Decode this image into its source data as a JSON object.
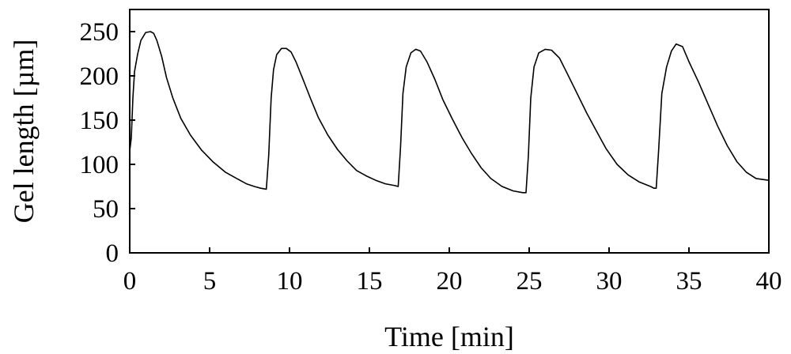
{
  "chart_data": {
    "type": "line",
    "xlabel": "Time [min]",
    "ylabel": "Gel length [µm]",
    "xlim": [
      0,
      40
    ],
    "ylim": [
      0,
      275
    ],
    "x_ticks": [
      0,
      5,
      10,
      15,
      20,
      25,
      30,
      35,
      40
    ],
    "y_ticks": [
      0,
      50,
      100,
      150,
      200,
      250
    ],
    "x_tick_labels": [
      "0",
      "5",
      "10",
      "15",
      "20",
      "25",
      "30",
      "35",
      "40"
    ],
    "y_tick_labels": [
      "0",
      "50",
      "100",
      "150",
      "200",
      "250"
    ],
    "grid": false,
    "line_color": "#000000",
    "series": [
      {
        "x": [
          0.0,
          0.1,
          0.2,
          0.3,
          0.5,
          0.7,
          1.0,
          1.3,
          1.5,
          1.7,
          2.0,
          2.3,
          2.7,
          3.2,
          3.8,
          4.5,
          5.2,
          6.0,
          6.7,
          7.3,
          7.8,
          8.2,
          8.55,
          8.7,
          8.85,
          9.0,
          9.2,
          9.5,
          9.8,
          10.1,
          10.4,
          10.8,
          11.3,
          11.8,
          12.4,
          13.0,
          13.6,
          14.2,
          14.8,
          15.4,
          16.0,
          16.6,
          16.8,
          16.95,
          17.1,
          17.3,
          17.6,
          17.9,
          18.2,
          18.6,
          19.1,
          19.6,
          20.2,
          20.8,
          21.4,
          22.0,
          22.6,
          23.3,
          24.0,
          24.6,
          24.8,
          24.95,
          25.1,
          25.3,
          25.6,
          26.0,
          26.4,
          26.9,
          27.4,
          28.0,
          28.6,
          29.2,
          29.8,
          30.5,
          31.2,
          31.9,
          32.6,
          32.8,
          32.95,
          33.1,
          33.3,
          33.6,
          33.9,
          34.2,
          34.6,
          35.0,
          35.6,
          36.2,
          36.8,
          37.4,
          38.0,
          38.6,
          39.2,
          40.0
        ],
        "y": [
          115,
          130,
          175,
          205,
          225,
          240,
          249,
          250,
          248,
          240,
          222,
          198,
          175,
          152,
          133,
          116,
          103,
          91,
          84,
          78,
          75,
          73,
          72,
          110,
          175,
          207,
          224,
          231,
          231,
          227,
          216,
          198,
          175,
          153,
          133,
          117,
          104,
          93,
          87,
          82,
          78,
          76,
          75,
          120,
          180,
          210,
          226,
          230,
          228,
          216,
          196,
          173,
          151,
          130,
          112,
          96,
          84,
          75,
          70,
          68,
          68,
          110,
          175,
          210,
          226,
          230,
          229,
          220,
          202,
          180,
          158,
          138,
          118,
          100,
          88,
          80,
          75,
          73,
          73,
          115,
          180,
          210,
          228,
          236,
          233,
          216,
          193,
          168,
          143,
          121,
          103,
          91,
          84,
          82
        ]
      }
    ]
  }
}
